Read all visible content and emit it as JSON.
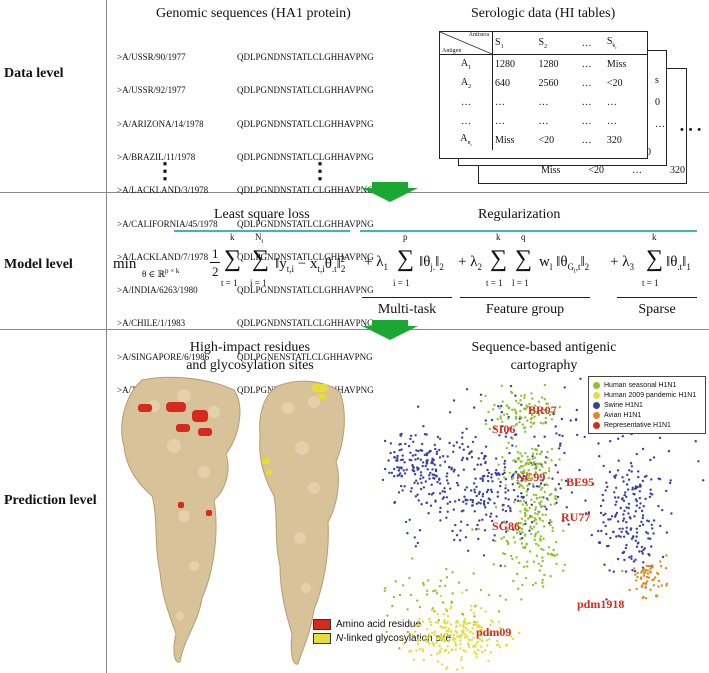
{
  "rows": {
    "data_level": "Data level",
    "model_level": "Model level",
    "prediction_level": "Prediction level"
  },
  "data": {
    "genomic_title": "Genomic sequences (HA1 protein)",
    "serologic_title": "Serologic data (HI tables)",
    "strains": [
      ">A/USSR/90/1977",
      ">A/USSR/92/1977",
      ">A/ARIZONA/14/1978",
      ">A/BRAZIL/11/1978",
      ">A/LACKLAND/3/1978",
      ">A/CALIFORNIA/45/1978",
      ">A/LACKLAND/7/1978",
      ">A/INDIA/6263/1980",
      ">A/CHILE/1/1983",
      ">A/SINGAPORE/6/1986",
      ">A/TAIWAN/1/1986"
    ],
    "sequences": [
      "QDLPGNDNSTATLCLGHHAVPNG",
      "QDLPGNDNSTATLCLGHHAVPNG",
      "QDLPGNDNSTATLCLGHHAVPNG",
      "QDLPGNDNSTATLCLGHHAVPNG",
      "QDLPGNDNSTATLCLGHHAVPNG",
      "QDLPGNDNSTATLCLGHHAVPNG",
      "QDLPGNDNSTATLCLGHHAVPNG",
      "QDLPGNDNSTATLCLGHHAVPNG",
      "QDLPGNDNSTATLCLGHHAVPNG",
      "QDLPGNENSTATLCLGHHAVPNG",
      "QDLPGNDKSTATLCLGHHAVPNG"
    ],
    "vdots": "⋮",
    "hi_table": {
      "corner_top": "Antisera",
      "corner_bottom": "Antigen",
      "col_headers": [
        "S1",
        "S2",
        "…",
        "Sk"
      ],
      "rows": [
        [
          "A1",
          "1280",
          "1280",
          "…",
          "Miss"
        ],
        [
          "A2",
          "640",
          "2560",
          "…",
          "<20"
        ],
        [
          "…",
          "…",
          "…",
          "…",
          "…"
        ],
        [
          "…",
          "…",
          "…",
          "…",
          "…"
        ],
        [
          "An",
          "Miss",
          "<20",
          "…",
          "320"
        ]
      ],
      "back_row_text": [
        "Miss",
        "<20",
        "…",
        "320"
      ],
      "back_peek": [
        "s",
        "0",
        "…"
      ],
      "more": "• • •"
    }
  },
  "model": {
    "loss_title": "Least square loss",
    "reg_title": "Regularization",
    "formula": {
      "min": "min",
      "min_sub": "θ ∈ ℝ",
      "min_sup": "p × k",
      "half_num": "1",
      "half_den": "2",
      "sum_k_top": "k",
      "sum_t_eq": "t = 1",
      "sum_n_top": "N",
      "sum_n_sub": "t",
      "sum_i_eq": "i = 1",
      "loss_body": "‖y",
      "loss_y_sub": "t,i",
      "loss_minus": " − x",
      "loss_x_sub": "t,i",
      "loss_theta": "θ",
      "loss_theta_sub": ".t",
      "loss_close": "‖",
      "loss_norm_sub": "2",
      "loss_norm_sup": "2",
      "plus1": "+ λ",
      "lambda1_sub": "1",
      "sum_p_top": "p",
      "sum_p_eq": "i = 1",
      "mt_body": "‖θ",
      "mt_sub": "j.",
      "mt_close": "‖",
      "mt_norm_sub": "2",
      "plus2": "+ λ",
      "lambda2_sub": "2",
      "sum_k2_top": "k",
      "sum_k2_eq": "t = 1",
      "sum_q_top": "q",
      "sum_q_eq": "l = 1",
      "fg_w": "w",
      "fg_w_sub": "l",
      "fg_body": "‖θ",
      "fg_sub": "G",
      "fg_sub2": "l",
      "fg_sub3": ",t",
      "fg_close": "‖",
      "fg_norm_sub": "2",
      "plus3": "+ λ",
      "lambda3_sub": "3",
      "sum_k3_top": "k",
      "sum_k3_eq": "t = 1",
      "sp_body": "‖θ",
      "sp_sub": ".t",
      "sp_close": "‖",
      "sp_norm_sub": "1"
    },
    "multi_task": "Multi-task",
    "feature_group": "Feature group",
    "sparse": "Sparse"
  },
  "prediction": {
    "left_title_1": "High-impact residues",
    "left_title_2": "and glycosylation sites",
    "right_title_1": "Sequence-based antigenic",
    "right_title_2": "cartography",
    "key_red": "Amino acid residue",
    "key_yellow_italic": "N",
    "key_yellow_rest": "-linked glycosylation site",
    "legend": [
      {
        "label": "Human seasonal H1N1",
        "color": "#8fc32d"
      },
      {
        "label": "Human 2009 pandemic H1N1",
        "color": "#e6dc3a"
      },
      {
        "label": "Swine H1N1",
        "color": "#3a3fa6"
      },
      {
        "label": "Avian H1N1",
        "color": "#e08a1e"
      },
      {
        "label": "Representative H1N1",
        "color": "#d42b1e"
      }
    ],
    "strain_labels": [
      "BR07",
      "SI06",
      "NC99",
      "BE95",
      "SG86",
      "RU77",
      "pdm1918",
      "pdm09"
    ]
  },
  "colors": {
    "arrow_green": "#1aa832",
    "teal": "#3fb6b0",
    "protein": "#d8c29a",
    "residue_red": "#d42b1e",
    "glyco_yellow": "#e6dc3a"
  }
}
